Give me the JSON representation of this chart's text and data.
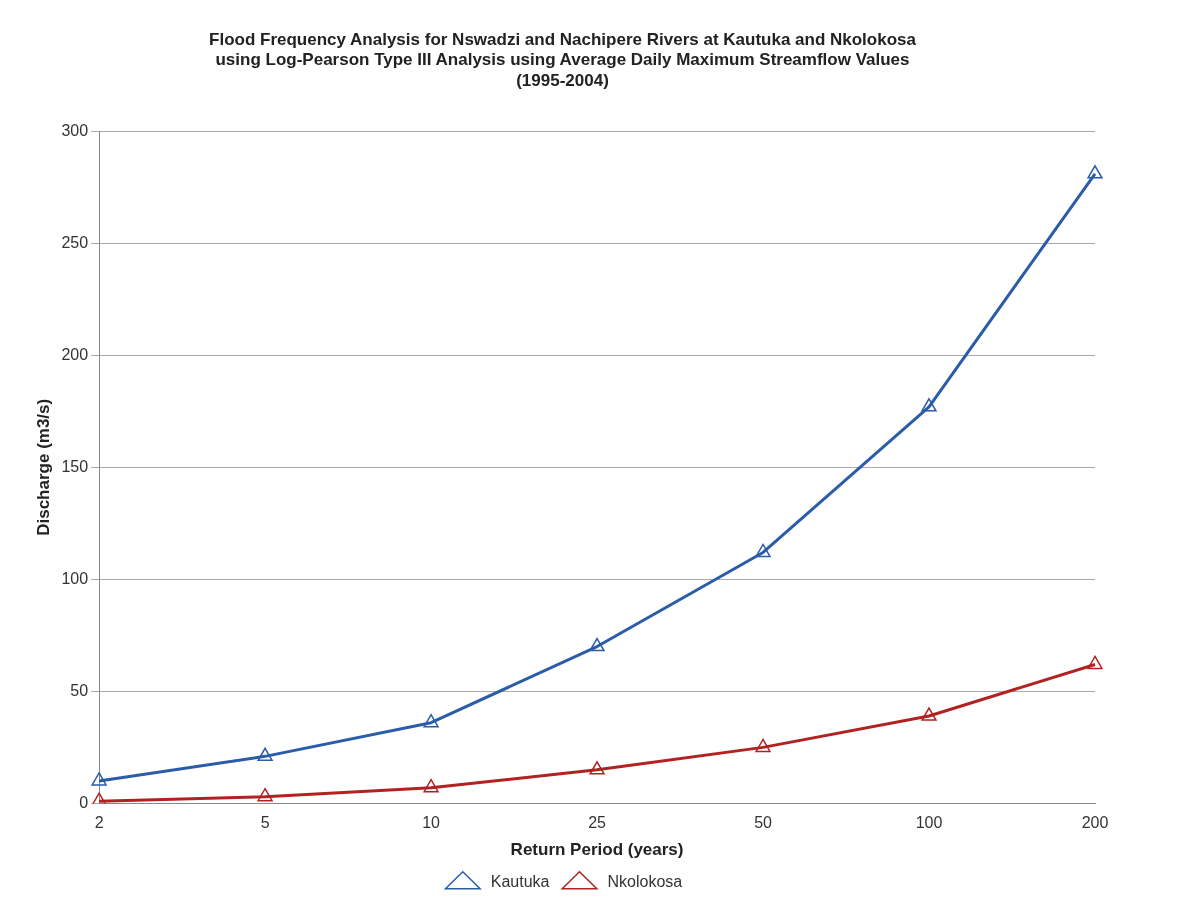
{
  "chart_data": {
    "type": "line",
    "title": "Flood Frequency Analysis for Nswadzi and Nachipere Rivers at Kautuka and Nkolokosa\nusing Log-Pearson Type III Analysis using Average Daily Maximum Streamflow Values\n(1995-2004)",
    "xlabel": "Return Period (years)",
    "ylabel": "Discharge (m3/s)",
    "categories": [
      "2",
      "5",
      "10",
      "25",
      "50",
      "100",
      "200"
    ],
    "series": [
      {
        "name": "Kautuka",
        "color": "#2a5caa",
        "values": [
          10,
          21,
          36,
          70,
          112,
          177,
          281
        ]
      },
      {
        "name": "Nkolokosa",
        "color": "#b22222",
        "values": [
          1,
          3,
          7,
          15,
          25,
          39,
          62
        ]
      }
    ],
    "ylim": [
      0,
      300
    ],
    "yticks": [
      0,
      50,
      100,
      150,
      200,
      250,
      300
    ],
    "grid": "y",
    "legend": "bottom",
    "marker": "triangle",
    "line_style": "solid"
  }
}
